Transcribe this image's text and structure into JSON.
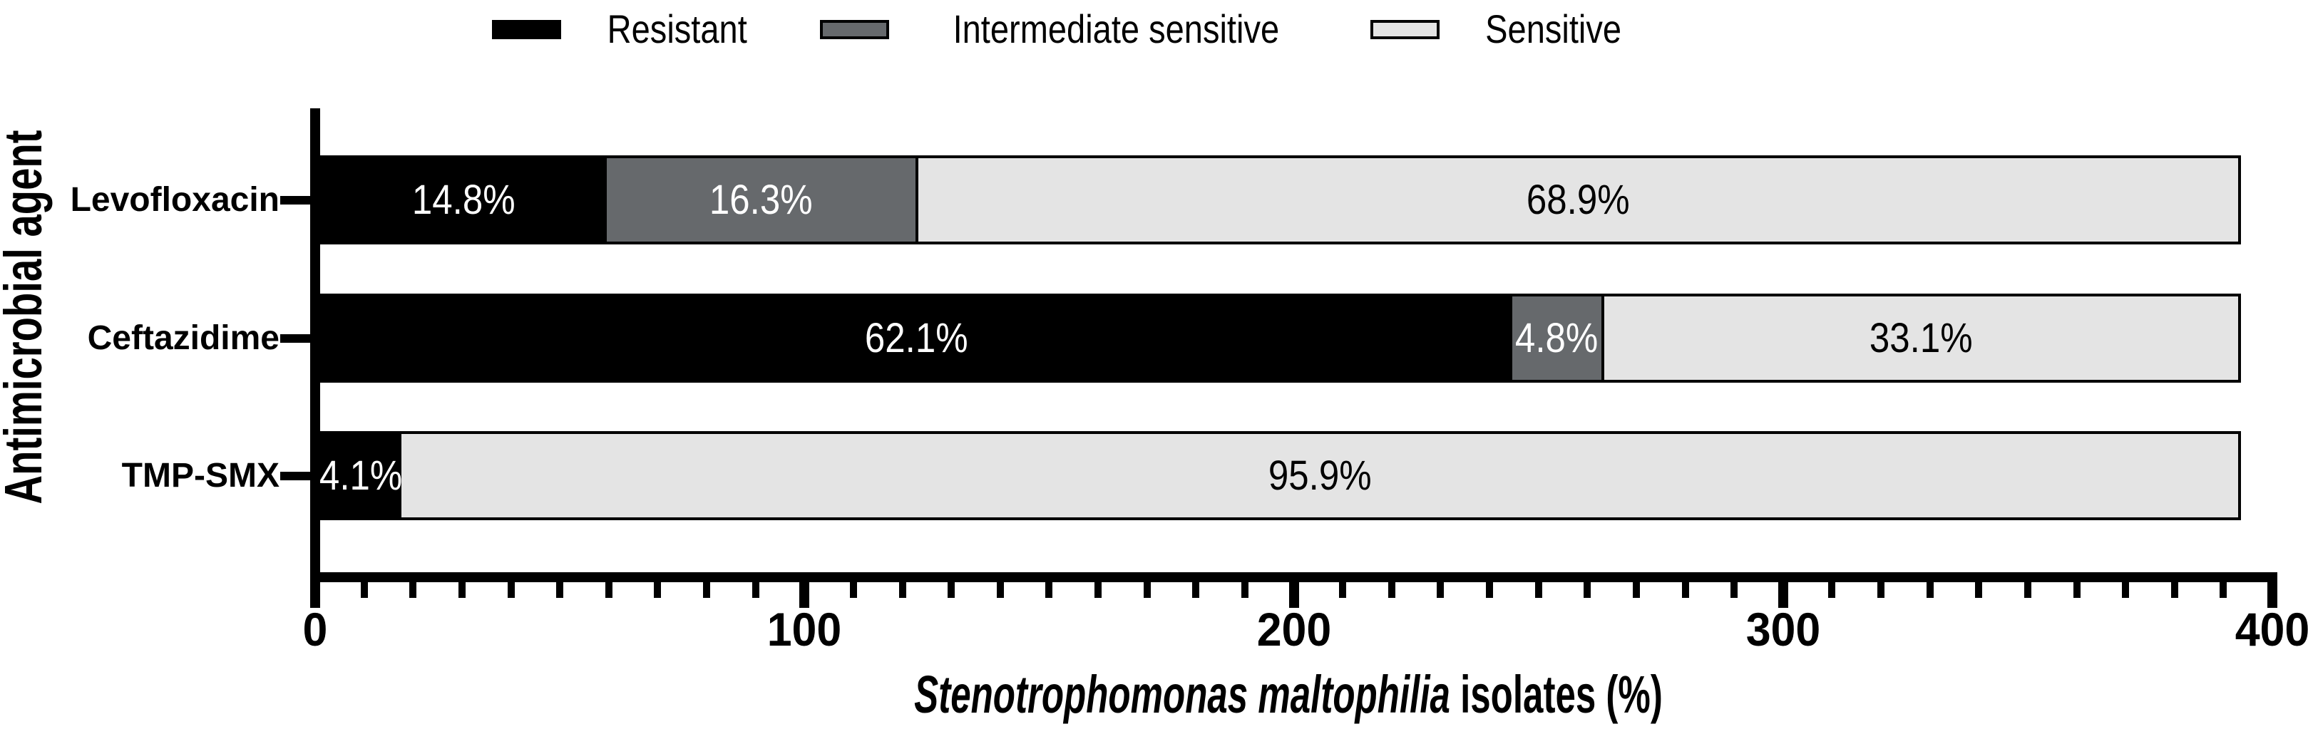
{
  "legend": {
    "items": [
      {
        "label": "Resistant",
        "color": "#000000"
      },
      {
        "label": "Intermediate sensitive",
        "color": "#66696c"
      },
      {
        "label": "Sensitive",
        "color": "#e4e4e4"
      }
    ]
  },
  "chart_data": {
    "type": "bar",
    "orientation": "horizontal",
    "stacked": true,
    "title": "",
    "ylabel": "Antimicrobial agent",
    "xlabel_species": "Stenotrophomonas maltophilia",
    "xlabel_rest": " isolates (%)",
    "categories": [
      "Levofloxacin",
      "Ceftazidime",
      "TMP-SMX"
    ],
    "series": [
      {
        "name": "Resistant",
        "color": "#000000",
        "text_color": "#ffffff",
        "values": [
          14.8,
          62.1,
          4.1
        ],
        "labels": [
          "14.8%",
          "62.1%",
          "4.1%"
        ]
      },
      {
        "name": "Intermediate sensitive",
        "color": "#66696c",
        "text_color": "#ffffff",
        "values": [
          16.3,
          4.8,
          0
        ],
        "labels": [
          "16.3%",
          "4.8%",
          ""
        ]
      },
      {
        "name": "Sensitive",
        "color": "#e4e4e4",
        "text_color": "#000000",
        "values": [
          68.9,
          33.1,
          95.9
        ],
        "labels": [
          "68.9%",
          "33.1%",
          "95.9%"
        ]
      }
    ],
    "xlim": [
      0,
      400
    ],
    "x_ticks": [
      0,
      100,
      200,
      300,
      400
    ],
    "x_tick_labels": [
      "0",
      "100",
      "200",
      "300",
      "400"
    ],
    "x_minor_tick_step": 10,
    "bar_total_axis_units": 393.4,
    "grid": false,
    "legend_position": "top"
  }
}
